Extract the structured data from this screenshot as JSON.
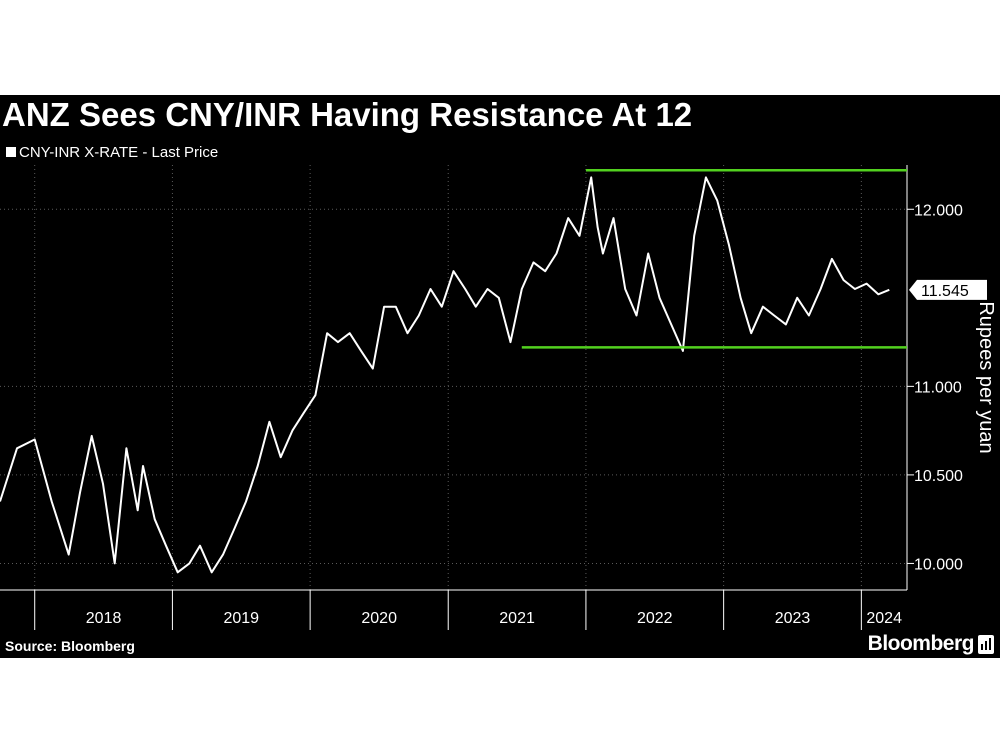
{
  "chart_data": {
    "type": "line",
    "title": "ANZ Sees CNY/INR Having Resistance At 12",
    "legend": [
      "CNY-INR X-RATE - Last Price"
    ],
    "ylabel": "Rupees per yuan",
    "yticks": [
      "10.000",
      "10.500",
      "11.000",
      "12.000"
    ],
    "ylim": [
      9.85,
      12.25
    ],
    "xticks": [
      "2018",
      "2019",
      "2020",
      "2021",
      "2022",
      "2023",
      "2024"
    ],
    "xlim": [
      "2017-10-01",
      "2024-05-01"
    ],
    "last_value_label": "11.545",
    "grid": true,
    "series": [
      {
        "name": "CNY-INR X-RATE - Last Price",
        "color": "#ffffff",
        "x": [
          "2017-10-01",
          "2017-11-15",
          "2018-01-01",
          "2018-02-15",
          "2018-04-01",
          "2018-05-01",
          "2018-06-01",
          "2018-07-01",
          "2018-08-01",
          "2018-09-01",
          "2018-10-01",
          "2018-10-15",
          "2018-11-15",
          "2018-12-15",
          "2019-01-15",
          "2019-02-15",
          "2019-03-15",
          "2019-04-15",
          "2019-05-15",
          "2019-06-15",
          "2019-07-15",
          "2019-08-15",
          "2019-09-15",
          "2019-10-15",
          "2019-11-15",
          "2019-12-15",
          "2020-01-15",
          "2020-02-15",
          "2020-03-15",
          "2020-04-15",
          "2020-05-15",
          "2020-06-15",
          "2020-07-15",
          "2020-08-15",
          "2020-09-15",
          "2020-10-15",
          "2020-11-15",
          "2020-12-15",
          "2021-01-15",
          "2021-02-15",
          "2021-03-15",
          "2021-04-15",
          "2021-05-15",
          "2021-06-15",
          "2021-07-15",
          "2021-08-15",
          "2021-09-15",
          "2021-10-15",
          "2021-11-15",
          "2021-12-15",
          "2022-01-15",
          "2022-02-01",
          "2022-02-15",
          "2022-03-15",
          "2022-04-15",
          "2022-05-15",
          "2022-06-15",
          "2022-07-15",
          "2022-08-15",
          "2022-09-15",
          "2022-10-15",
          "2022-11-15",
          "2022-12-15",
          "2023-01-15",
          "2023-02-15",
          "2023-03-15",
          "2023-04-15",
          "2023-05-15",
          "2023-06-15",
          "2023-07-15",
          "2023-08-15",
          "2023-09-15",
          "2023-10-15",
          "2023-11-15",
          "2023-12-15",
          "2024-01-15",
          "2024-02-15",
          "2024-03-15"
        ],
        "values": [
          10.35,
          10.65,
          10.7,
          10.35,
          10.05,
          10.4,
          10.72,
          10.45,
          10.0,
          10.65,
          10.3,
          10.55,
          10.25,
          10.1,
          9.95,
          10.0,
          10.1,
          9.95,
          10.05,
          10.2,
          10.35,
          10.55,
          10.8,
          10.6,
          10.75,
          10.85,
          10.95,
          11.3,
          11.25,
          11.3,
          11.2,
          11.1,
          11.45,
          11.45,
          11.3,
          11.4,
          11.55,
          11.45,
          11.65,
          11.55,
          11.45,
          11.55,
          11.5,
          11.25,
          11.55,
          11.7,
          11.65,
          11.75,
          11.95,
          11.85,
          12.18,
          11.9,
          11.75,
          11.95,
          11.55,
          11.4,
          11.75,
          11.5,
          11.35,
          11.2,
          11.85,
          12.18,
          12.05,
          11.8,
          11.5,
          11.3,
          11.45,
          11.4,
          11.35,
          11.5,
          11.4,
          11.55,
          11.72,
          11.6,
          11.55,
          11.58,
          11.52,
          11.545
        ]
      },
      {
        "name": "",
        "color": "#52d11f",
        "x": [
          "2022-01-01",
          "2024-05-01"
        ],
        "values": [
          12.22,
          12.22
        ]
      },
      {
        "name": "",
        "color": "#52d11f",
        "x": [
          "2021-07-15",
          "2024-05-01"
        ],
        "values": [
          11.22,
          11.22
        ]
      }
    ]
  },
  "source": "Source: Bloomberg",
  "brand": "Bloomberg"
}
